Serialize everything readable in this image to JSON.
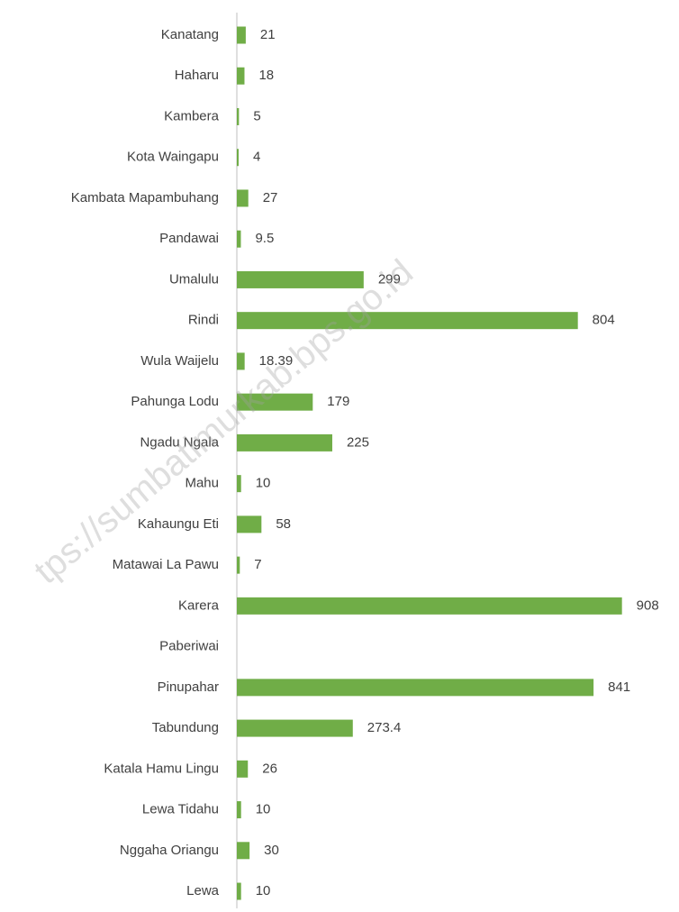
{
  "chart_data": {
    "type": "bar",
    "orientation": "horizontal",
    "categories": [
      "Kanatang",
      "Haharu",
      "Kambera",
      "Kota Waingapu",
      "Kambata Mapambuhang",
      "Pandawai",
      "Umalulu",
      "Rindi",
      "Wula Waijelu",
      "Pahunga Lodu",
      "Ngadu Ngala",
      "Mahu",
      "Kahaungu Eti",
      "Matawai La Pawu",
      "Karera",
      "Paberiwai",
      "Pinupahar",
      "Tabundung",
      "Katala Hamu Lingu",
      "Lewa Tidahu",
      "Nggaha Oriangu",
      "Lewa"
    ],
    "values": [
      21,
      18,
      5,
      4,
      27,
      9.5,
      299,
      804,
      18.39,
      179,
      225,
      10,
      58,
      7,
      908,
      null,
      841,
      273.4,
      26,
      10,
      30,
      10
    ],
    "color": "#70ad47",
    "xlim": [
      0,
      1000
    ],
    "grid": false,
    "watermark": "tps://sumbatimurkab.bps.go.id"
  }
}
